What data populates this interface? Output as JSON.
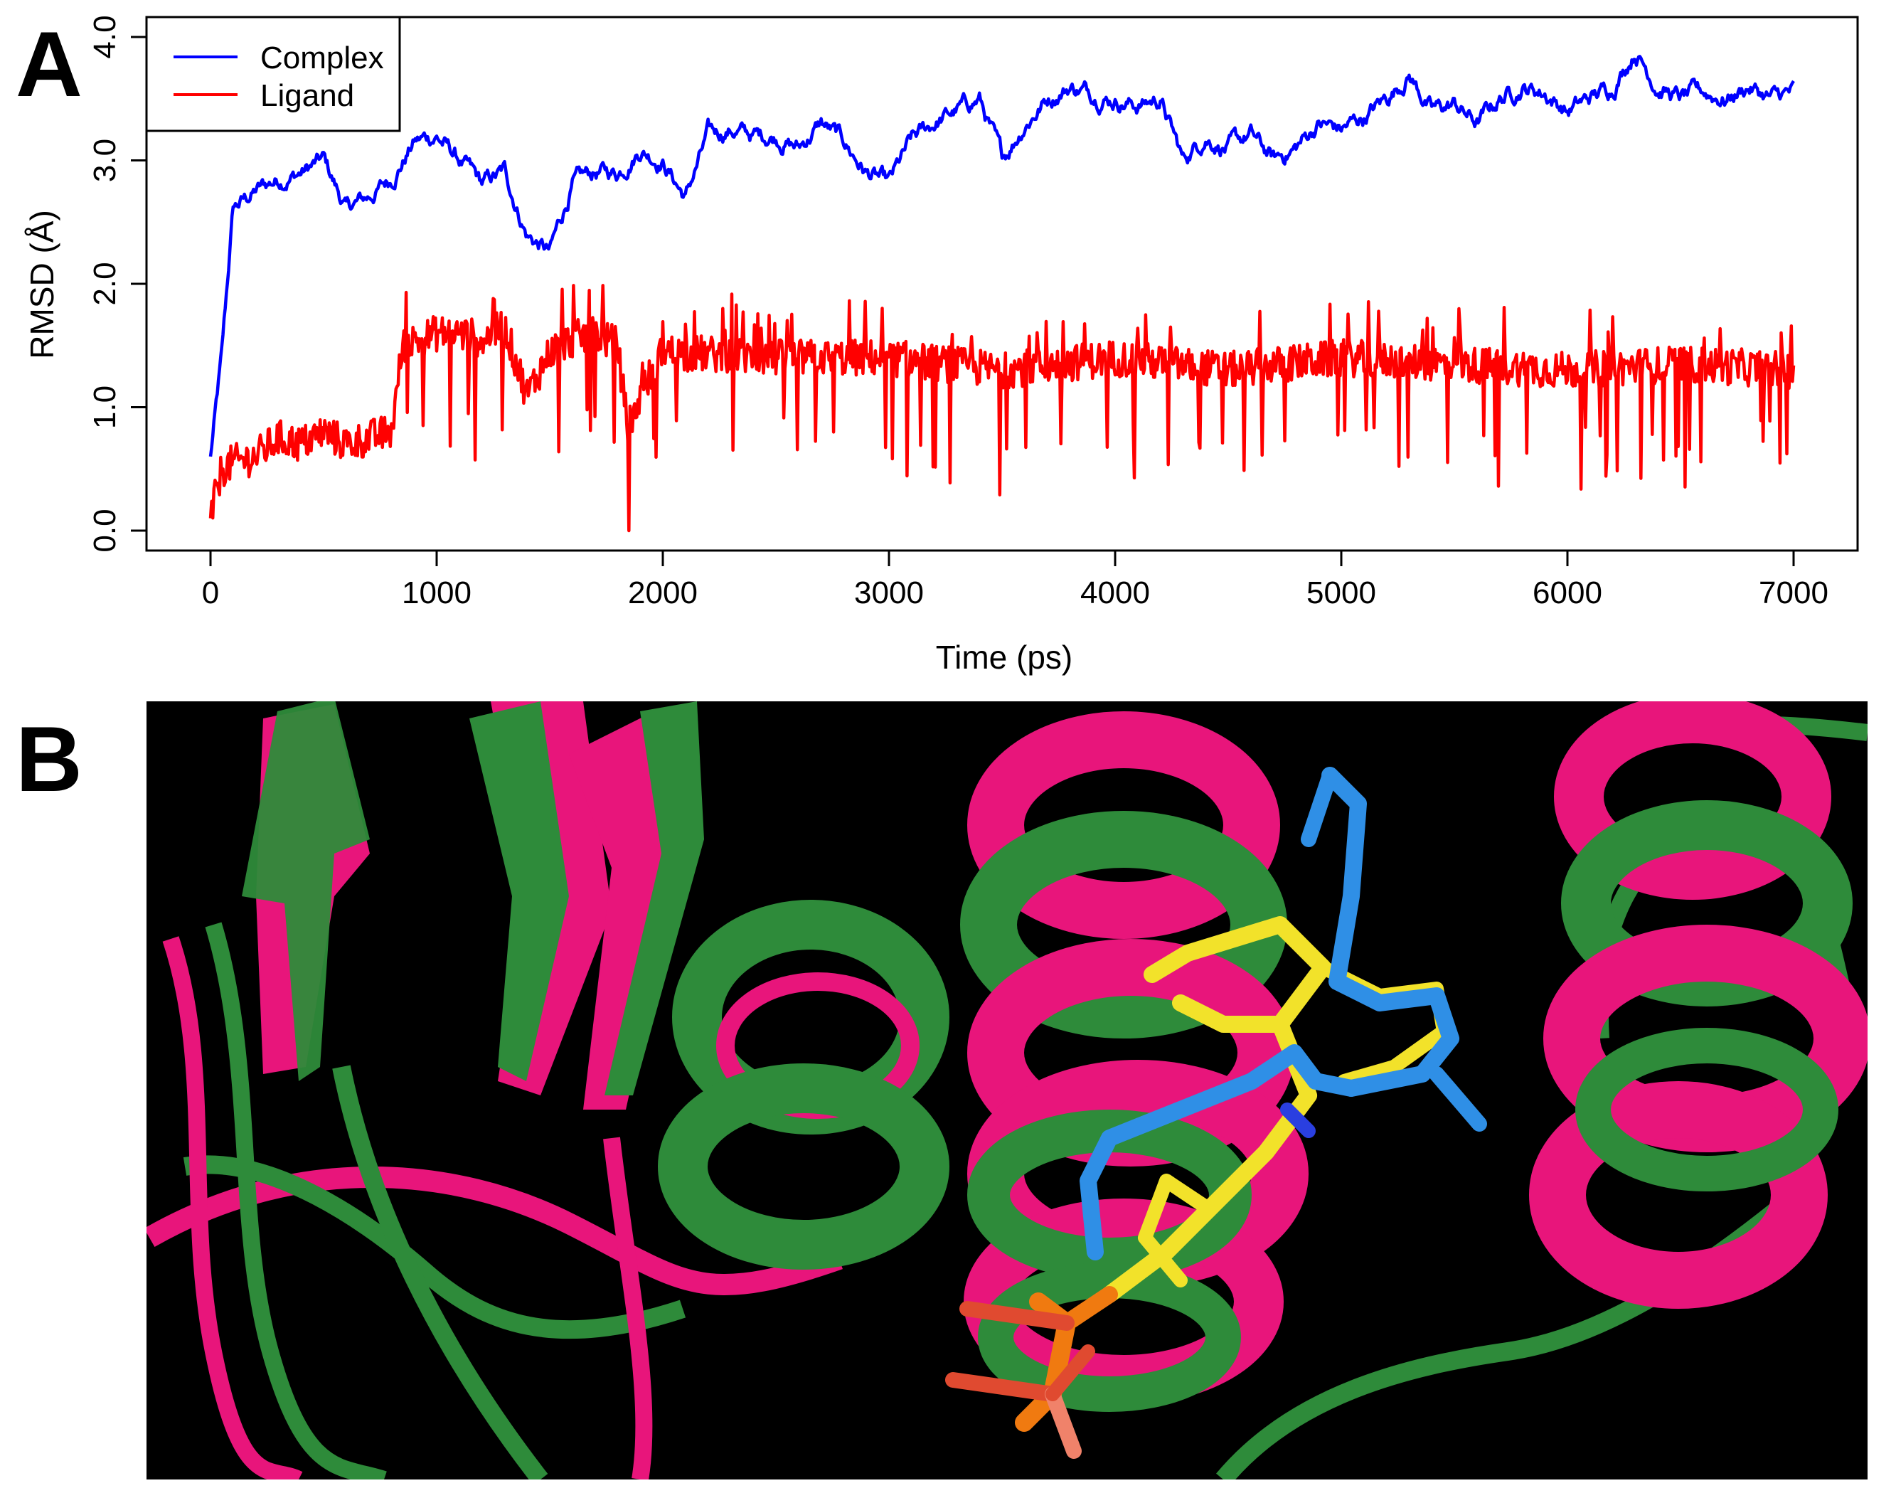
{
  "panels": {
    "a_label": "A",
    "b_label": "B"
  },
  "chart_data": {
    "type": "line",
    "title": "",
    "xlabel": "Time (ps)",
    "ylabel": "RMSD (Å)",
    "xlim": [
      0,
      7000
    ],
    "ylim": [
      0,
      4.0
    ],
    "xticks": [
      0,
      1000,
      2000,
      3000,
      4000,
      5000,
      6000,
      7000
    ],
    "xtick_labels": [
      "0",
      "1000",
      "2000",
      "3000",
      "4000",
      "5000",
      "6000",
      "7000"
    ],
    "yticks": [
      0,
      1,
      2,
      3,
      4
    ],
    "ytick_labels": [
      "0.0",
      "1.0",
      "2.0",
      "3.0",
      "4.0"
    ],
    "grid": false,
    "legend_position": "top-left",
    "series": [
      {
        "name": "Complex",
        "color": "#0000ff",
        "x": [
          0,
          50,
          100,
          200,
          300,
          400,
          500,
          600,
          700,
          800,
          900,
          1000,
          1100,
          1200,
          1300,
          1400,
          1500,
          1600,
          1700,
          1800,
          1900,
          2000,
          2100,
          2200,
          2300,
          2400,
          2500,
          2600,
          2700,
          2800,
          2900,
          3000,
          3100,
          3200,
          3300,
          3400,
          3500,
          3600,
          3700,
          3800,
          3900,
          4000,
          4100,
          4200,
          4300,
          4400,
          4500,
          4600,
          4700,
          4800,
          4900,
          5000,
          5100,
          5200,
          5300,
          5400,
          5500,
          5600,
          5700,
          5800,
          5900,
          6000,
          6100,
          6200,
          6300,
          6400,
          6500,
          6600,
          6700,
          6800,
          6900,
          7000
        ],
        "values": [
          0.6,
          1.4,
          2.6,
          2.75,
          2.85,
          2.9,
          3.0,
          2.6,
          2.7,
          2.85,
          3.15,
          3.2,
          3.0,
          2.8,
          2.9,
          2.4,
          2.25,
          2.8,
          2.9,
          2.9,
          3.1,
          3.0,
          2.7,
          3.2,
          3.25,
          3.2,
          3.2,
          3.1,
          3.3,
          3.15,
          2.9,
          2.8,
          3.15,
          3.3,
          3.4,
          3.5,
          3.0,
          3.3,
          3.5,
          3.6,
          3.55,
          3.5,
          3.45,
          3.5,
          3.0,
          3.2,
          3.1,
          3.2,
          3.0,
          3.1,
          3.3,
          3.25,
          3.35,
          3.5,
          3.7,
          3.4,
          3.45,
          3.3,
          3.5,
          3.6,
          3.55,
          3.4,
          3.5,
          3.6,
          3.9,
          3.6,
          3.5,
          3.55,
          3.5,
          3.6,
          3.5,
          3.55
        ],
        "noise": 0.09
      },
      {
        "name": "Ligand",
        "color": "#ff0000",
        "x": [
          0,
          50,
          100,
          200,
          300,
          400,
          500,
          600,
          700,
          800,
          850,
          1000,
          1100,
          1200,
          1300,
          1400,
          1500,
          1600,
          1700,
          1800,
          1850,
          1900,
          2000,
          2500,
          3000,
          3500,
          4000,
          4500,
          5000,
          5500,
          6000,
          6500,
          7000
        ],
        "values": [
          0.1,
          0.5,
          0.55,
          0.6,
          0.75,
          0.7,
          0.8,
          0.7,
          0.75,
          0.8,
          1.5,
          1.6,
          1.6,
          1.55,
          1.65,
          1.1,
          1.45,
          1.55,
          1.6,
          1.5,
          0.75,
          1.1,
          1.45,
          1.4,
          1.4,
          1.3,
          1.4,
          1.3,
          1.4,
          1.35,
          1.3,
          1.35,
          1.3
        ],
        "noise": 0.3
      }
    ]
  },
  "structure_view": {
    "description_visible": false,
    "background": "#000000",
    "colors": {
      "protein_a": "#e8157b",
      "protein_b": "#2e8b3a",
      "ligand_a": "#f2e22a",
      "ligand_b": "#2f8fe6",
      "nitrogen": "#2a3fe0",
      "phosphate": "#f07a10",
      "oxygen": "#e04a30"
    }
  }
}
